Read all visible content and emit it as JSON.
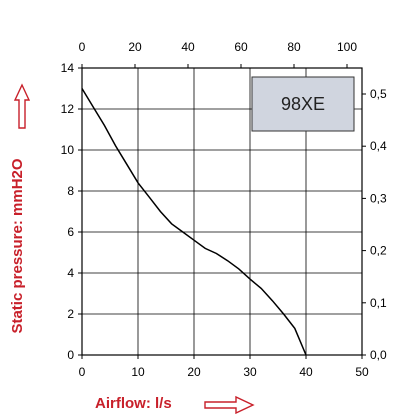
{
  "chart_data": {
    "type": "line",
    "title": "",
    "model_label": "98XE",
    "xlabel": "Airflow: l/s",
    "ylabel": "Static pressure: mmH2O",
    "xlim": [
      0,
      50
    ],
    "ylim": [
      0,
      14
    ],
    "x_ticks": [
      "0",
      "10",
      "20",
      "30",
      "40",
      "50"
    ],
    "y_ticks": [
      "0",
      "2",
      "4",
      "6",
      "8",
      "10",
      "12",
      "14"
    ],
    "top_axis": {
      "ticks": [
        "0",
        "20",
        "40",
        "60",
        "80",
        "100"
      ]
    },
    "right_axis": {
      "ticks": [
        "0,0",
        "0,1",
        "0,2",
        "0,3",
        "0,4",
        "0,5"
      ]
    },
    "grid": true,
    "series": [
      {
        "x": [
          0,
          2,
          4,
          6,
          8,
          10,
          12,
          14,
          16,
          18,
          20,
          22,
          24,
          26,
          28,
          30,
          32,
          34,
          36,
          38,
          40
        ],
        "y": [
          13.0,
          12.1,
          11.2,
          10.2,
          9.3,
          8.4,
          7.7,
          7.0,
          6.4,
          6.0,
          5.6,
          5.2,
          4.95,
          4.6,
          4.2,
          3.7,
          3.25,
          2.65,
          2.0,
          1.3,
          0.0
        ]
      }
    ],
    "colors": {
      "axis_titles": "#c8202a",
      "grid": "#000000",
      "curve": "#000000",
      "model_box": "#d0d5df"
    }
  }
}
